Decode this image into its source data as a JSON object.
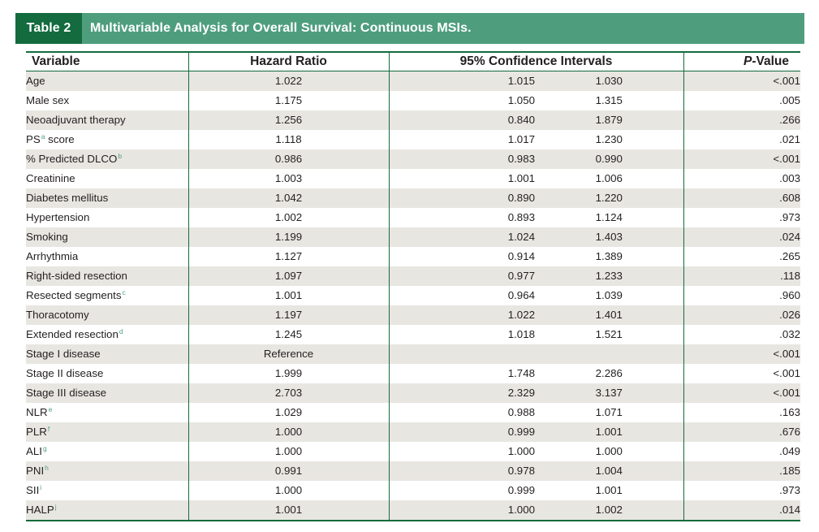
{
  "header": {
    "tag": "Table 2",
    "title": "Multivariable Analysis for Overall Survival: Continuous MSIs."
  },
  "columns": {
    "variable": "Variable",
    "hazard_ratio": "Hazard Ratio",
    "ci": "95% Confidence Intervals",
    "p_value_italic": "P",
    "p_value_rest": "-Value"
  },
  "rows": [
    {
      "variable": "Age",
      "sup": "",
      "hr": "1.022",
      "ci_low": "1.015",
      "ci_high": "1.030",
      "p": "<.001"
    },
    {
      "variable": "Male sex",
      "sup": "",
      "hr": "1.175",
      "ci_low": "1.050",
      "ci_high": "1.315",
      "p": ".005"
    },
    {
      "variable": "Neoadjuvant therapy",
      "sup": "",
      "hr": "1.256",
      "ci_low": "0.840",
      "ci_high": "1.879",
      "p": ".266"
    },
    {
      "variable": "PS",
      "sup": "a",
      "suffix": " score",
      "hr": "1.118",
      "ci_low": "1.017",
      "ci_high": "1.230",
      "p": ".021"
    },
    {
      "variable": "% Predicted DLCO",
      "sup": "b",
      "hr": "0.986",
      "ci_low": "0.983",
      "ci_high": "0.990",
      "p": "<.001"
    },
    {
      "variable": "Creatinine",
      "sup": "",
      "hr": "1.003",
      "ci_low": "1.001",
      "ci_high": "1.006",
      "p": ".003"
    },
    {
      "variable": "Diabetes mellitus",
      "sup": "",
      "hr": "1.042",
      "ci_low": "0.890",
      "ci_high": "1.220",
      "p": ".608"
    },
    {
      "variable": "Hypertension",
      "sup": "",
      "hr": "1.002",
      "ci_low": "0.893",
      "ci_high": "1.124",
      "p": ".973"
    },
    {
      "variable": "Smoking",
      "sup": "",
      "hr": "1.199",
      "ci_low": "1.024",
      "ci_high": "1.403",
      "p": ".024"
    },
    {
      "variable": "Arrhythmia",
      "sup": "",
      "hr": "1.127",
      "ci_low": "0.914",
      "ci_high": "1.389",
      "p": ".265"
    },
    {
      "variable": "Right-sided resection",
      "sup": "",
      "hr": "1.097",
      "ci_low": "0.977",
      "ci_high": "1.233",
      "p": ".118"
    },
    {
      "variable": "Resected segments",
      "sup": "c",
      "hr": "1.001",
      "ci_low": "0.964",
      "ci_high": "1.039",
      "p": ".960"
    },
    {
      "variable": "Thoracotomy",
      "sup": "",
      "hr": "1.197",
      "ci_low": "1.022",
      "ci_high": "1.401",
      "p": ".026"
    },
    {
      "variable": "Extended resection",
      "sup": "d",
      "hr": "1.245",
      "ci_low": "1.018",
      "ci_high": "1.521",
      "p": ".032"
    },
    {
      "variable": "Stage I disease",
      "sup": "",
      "hr": "Reference",
      "ci_low": "",
      "ci_high": "",
      "p": "<.001"
    },
    {
      "variable": "Stage II disease",
      "sup": "",
      "hr": "1.999",
      "ci_low": "1.748",
      "ci_high": "2.286",
      "p": "<.001"
    },
    {
      "variable": "Stage III disease",
      "sup": "",
      "hr": "2.703",
      "ci_low": "2.329",
      "ci_high": "3.137",
      "p": "<.001"
    },
    {
      "variable": "NLR",
      "sup": "e",
      "hr": "1.029",
      "ci_low": "0.988",
      "ci_high": "1.071",
      "p": ".163"
    },
    {
      "variable": "PLR",
      "sup": "f",
      "hr": "1.000",
      "ci_low": "0.999",
      "ci_high": "1.001",
      "p": ".676"
    },
    {
      "variable": "ALI",
      "sup": "g",
      "hr": "1.000",
      "ci_low": "1.000",
      "ci_high": "1.000",
      "p": ".049"
    },
    {
      "variable": "PNI",
      "sup": "h",
      "hr": "0.991",
      "ci_low": "0.978",
      "ci_high": "1.004",
      "p": ".185"
    },
    {
      "variable": "SII",
      "sup": "i",
      "hr": "1.000",
      "ci_low": "0.999",
      "ci_high": "1.001",
      "p": ".973"
    },
    {
      "variable": "HALP",
      "sup": "j",
      "hr": "1.001",
      "ci_low": "1.000",
      "ci_high": "1.002",
      "p": ".014"
    }
  ]
}
